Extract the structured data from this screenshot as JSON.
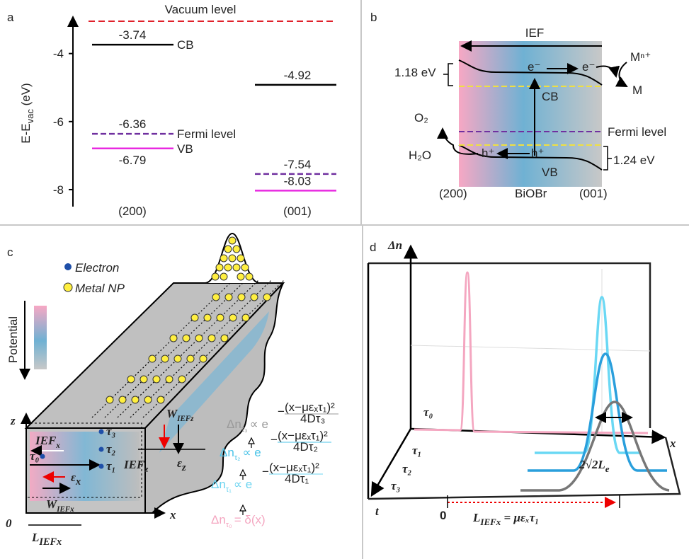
{
  "panel_a": {
    "label": "a",
    "y_label": {
      "main": "E-E",
      "sub": "vac",
      "unit": " (eV)"
    },
    "ylim": [
      -8.5,
      -2.8
    ],
    "yticks": [
      -4,
      -6,
      -8
    ],
    "vacuum_level": "Vacuum level",
    "categories": [
      "(200)",
      "(001)"
    ],
    "levels": [
      {
        "name": "CB",
        "color": "#000000",
        "dashed": false,
        "values": [
          -3.74,
          -4.92
        ]
      },
      {
        "name": "Fermi level",
        "color": "#7030a0",
        "dashed": true,
        "values": [
          -6.36,
          -7.54
        ]
      },
      {
        "name": "VB",
        "color": "#e82ae0",
        "dashed": false,
        "values": [
          -6.79,
          -8.03
        ]
      }
    ]
  },
  "panel_b": {
    "label": "b",
    "ief": "IEF",
    "gap_cb": "1.18 eV",
    "gap_vb": "1.24 eV",
    "electron": "e⁻",
    "metal_ion": "Mⁿ⁺",
    "metal": "M",
    "cb": "CB",
    "vb": "VB",
    "fermi": "Fermi level",
    "hole": "h⁺",
    "o2": "O₂",
    "h2o": "H₂O",
    "facet_200": "(200)",
    "material": "BiOBr",
    "facet_001": "(001)"
  },
  "panel_c": {
    "label": "c",
    "legend": [
      "Electron",
      "Metal NP"
    ],
    "potential": "Potential",
    "z": "z",
    "x": "x",
    "origin": "0",
    "ief_x": {
      "main": "IEF",
      "sub": "x"
    },
    "ief_z": {
      "main": "IEF",
      "sub": "z"
    },
    "w_ief_x": {
      "main": "W",
      "sub": "IEFx"
    },
    "w_ief_z": {
      "main": "W",
      "sub": "IEFz"
    },
    "l_ief_x": {
      "main": "L",
      "sub": "IEFx"
    },
    "eps_x": {
      "main": "ε",
      "sub": "x"
    },
    "eps_z": {
      "main": "ε",
      "sub": "z"
    },
    "taus": [
      "τ₀",
      "τ₁",
      "τ₂",
      "τ₃"
    ],
    "formulas": [
      {
        "lhs": "Δn",
        "sub": "τ₃",
        "rel": "∝ e",
        "sign": "−",
        "exp_num": "(x−μεₓτ₁)²",
        "exp_den": "4Dτ₃"
      },
      {
        "lhs": "Δn",
        "sub": "τ₂",
        "rel": "∝ e",
        "sign": "−",
        "exp_num": "(x−μεₓτ₁)²",
        "exp_den": "4Dτ₂"
      },
      {
        "lhs": "Δn",
        "sub": "τ₁",
        "rel": "∝ e",
        "sign": "−",
        "exp_num": "(x−μεₓτ₁)²",
        "exp_den": "4Dτ₁"
      },
      {
        "lhs": "Δn",
        "sub": "τ₀",
        "rel": "= δ(x)"
      }
    ]
  },
  "panel_d": {
    "label": "d",
    "y_axis": "Δn",
    "x_axis": "x",
    "t_axis": "t",
    "taus": [
      "τ₀",
      "τ₁",
      "τ₂",
      "τ₃"
    ],
    "origin": "0",
    "width": {
      "main": "2√2L",
      "sub": "e"
    },
    "distance": {
      "main": "L",
      "sub": "IEFx",
      "rest": " = μεₓτ₁"
    }
  }
}
